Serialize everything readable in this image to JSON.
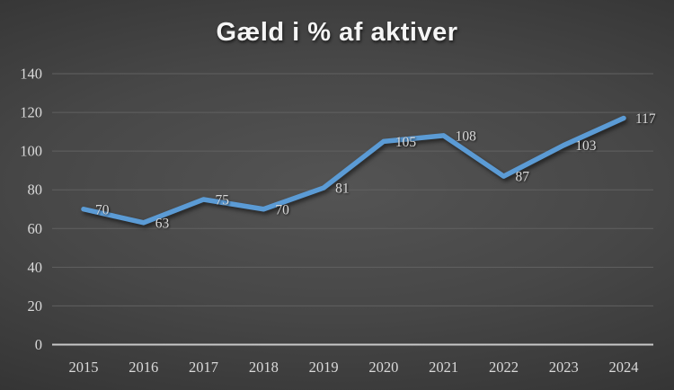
{
  "chart_data": {
    "type": "line",
    "title": "Gæld i % af aktiver",
    "categories": [
      "2015",
      "2016",
      "2017",
      "2018",
      "2019",
      "2020",
      "2021",
      "2022",
      "2023",
      "2024"
    ],
    "values": [
      70,
      63,
      75,
      70,
      81,
      105,
      108,
      87,
      103,
      117
    ],
    "xlabel": "",
    "ylabel": "",
    "ylim": [
      0,
      140
    ],
    "yticks": [
      0,
      20,
      40,
      60,
      80,
      100,
      120,
      140
    ],
    "grid": "horizontal",
    "legend": "none",
    "data_labels": true,
    "data_label_position": "right",
    "line_color": "#5b9bd5",
    "background_theme": "dark-gray-gradient",
    "text_color": "#d9d9d9"
  }
}
